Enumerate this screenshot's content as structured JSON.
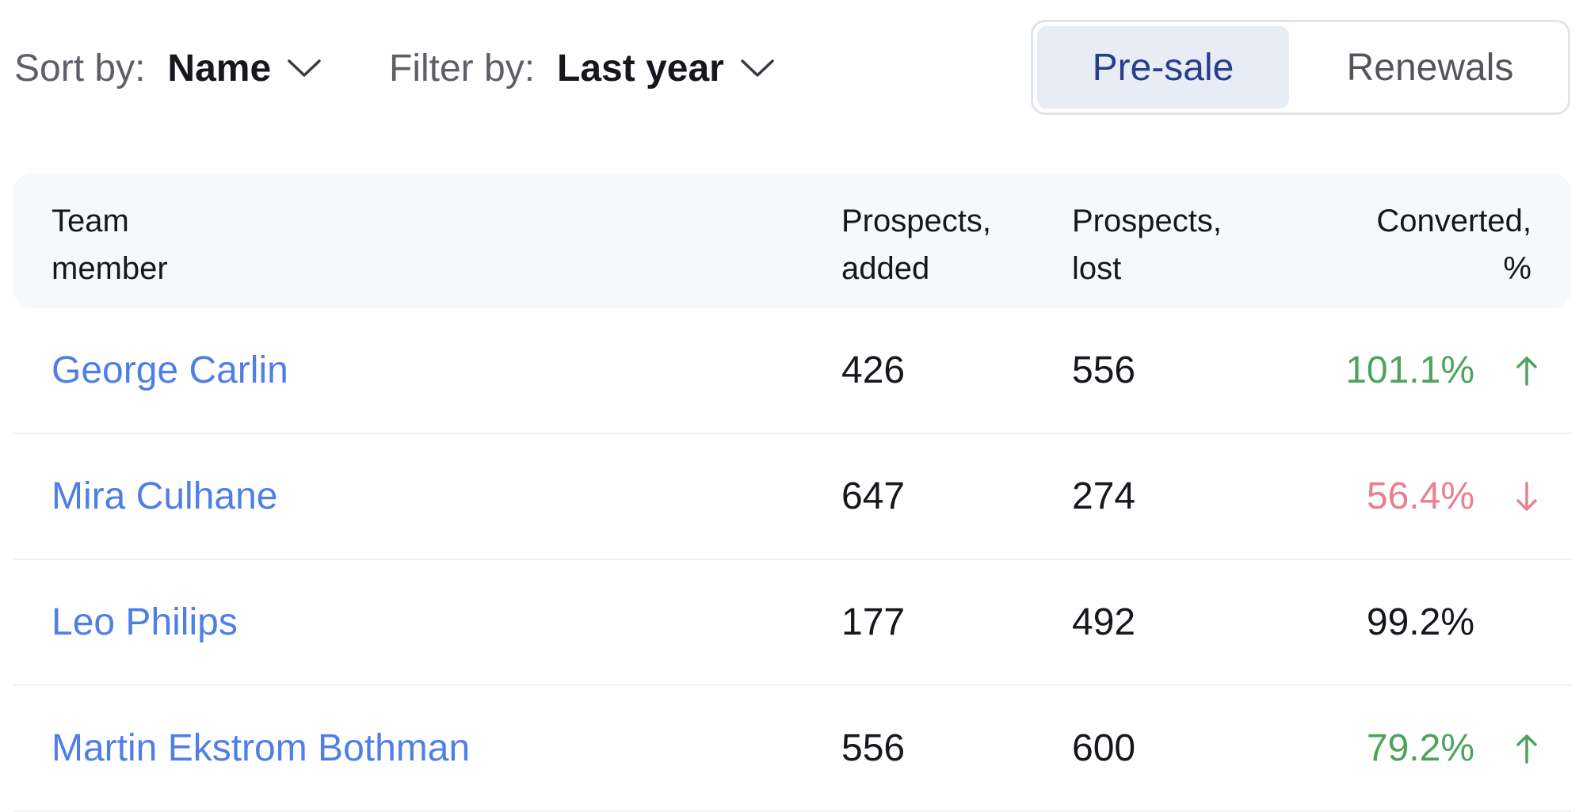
{
  "toolbar": {
    "sort_label": "Sort by:",
    "sort_value": "Name",
    "filter_label": "Filter by:",
    "filter_value": "Last year"
  },
  "tabs": [
    {
      "label": "Pre-sale",
      "active": true
    },
    {
      "label": "Renewals",
      "active": false
    }
  ],
  "table": {
    "headers": {
      "member": [
        "Team",
        "member"
      ],
      "added": [
        "Prospects,",
        "added"
      ],
      "lost": [
        "Prospects,",
        "lost"
      ],
      "converted": [
        "Converted,",
        "%"
      ]
    },
    "rows": [
      {
        "name": "George Carlin",
        "added": "426",
        "lost": "556",
        "converted": "101.1%",
        "trend": "up"
      },
      {
        "name": "Mira Culhane",
        "added": "647",
        "lost": "274",
        "converted": "56.4%",
        "trend": "down"
      },
      {
        "name": "Leo Philips",
        "added": "177",
        "lost": "492",
        "converted": "99.2%",
        "trend": "none"
      },
      {
        "name": "Martin Ekstrom Bothman",
        "added": "556",
        "lost": "600",
        "converted": "79.2%",
        "trend": "up"
      }
    ]
  },
  "colors": {
    "link": "#4f7fe6",
    "positive": "#4da35e",
    "negative": "#e8808f",
    "active_tab_bg": "#e8ecf5",
    "active_tab_text": "#273d8e"
  }
}
